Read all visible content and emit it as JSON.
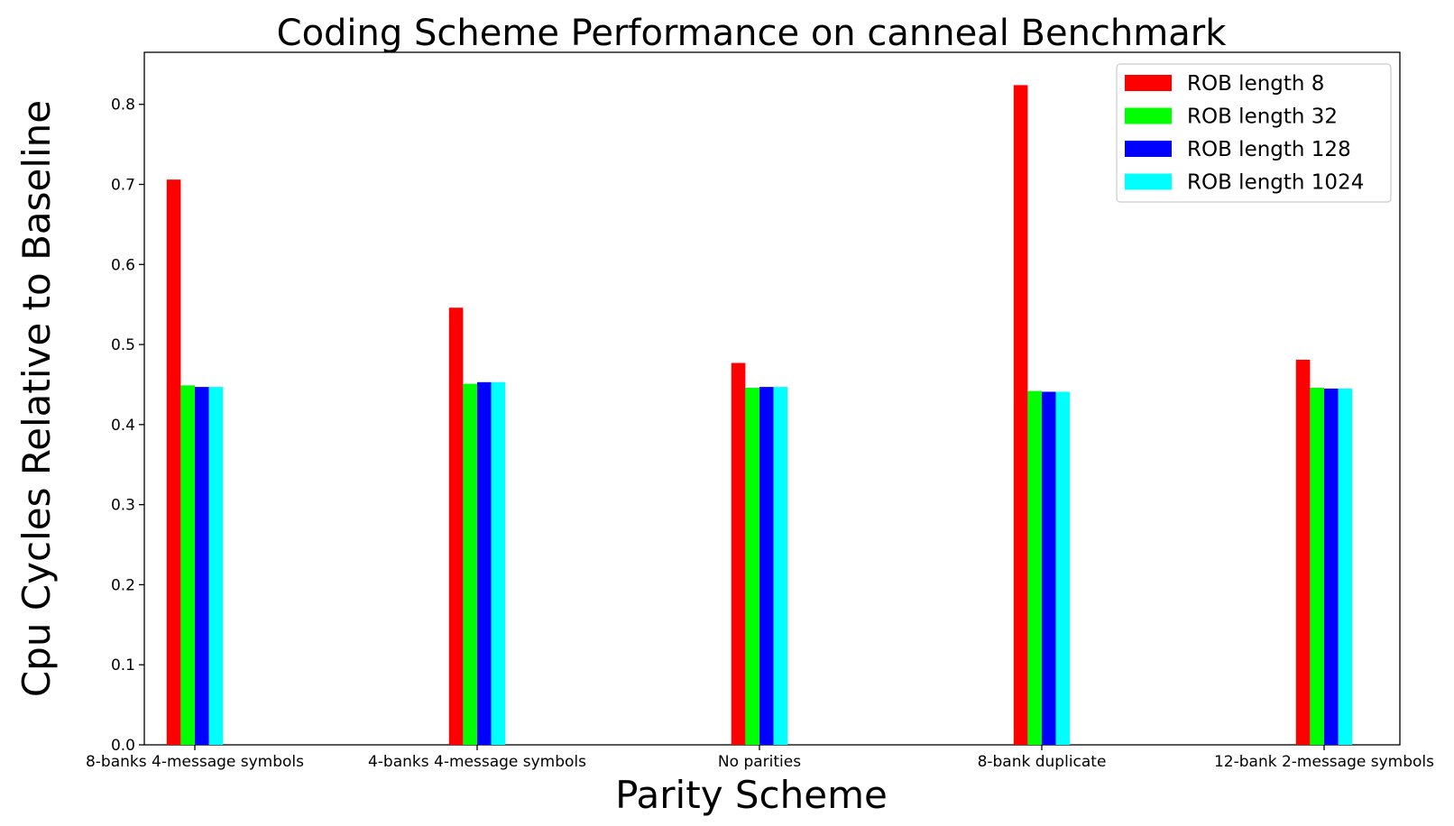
{
  "chart_data": {
    "type": "bar",
    "title": "Coding Scheme Performance on canneal Benchmark",
    "xlabel": "Parity Scheme",
    "ylabel": "Cpu Cycles Relative to Baseline",
    "categories": [
      "8-banks 4-message symbols",
      "4-banks 4-message symbols",
      "No parities",
      "8-bank duplicate",
      "12-bank 2-message symbols"
    ],
    "series": [
      {
        "name": "ROB length 8",
        "color": "#ff0000",
        "values": [
          0.706,
          0.546,
          0.477,
          0.824,
          0.481
        ]
      },
      {
        "name": "ROB length 32",
        "color": "#00ff00",
        "values": [
          0.449,
          0.451,
          0.446,
          0.442,
          0.446
        ]
      },
      {
        "name": "ROB length 128",
        "color": "#0000ff",
        "values": [
          0.447,
          0.453,
          0.447,
          0.441,
          0.445
        ]
      },
      {
        "name": "ROB length 1024",
        "color": "#00ffff",
        "values": [
          0.447,
          0.453,
          0.447,
          0.441,
          0.445
        ]
      }
    ],
    "ylim": [
      0,
      0.865
    ],
    "yticks": [
      "0.0",
      "0.1",
      "0.2",
      "0.3",
      "0.4",
      "0.5",
      "0.6",
      "0.7",
      "0.8"
    ],
    "grid": false,
    "legend_position": "top-right"
  }
}
